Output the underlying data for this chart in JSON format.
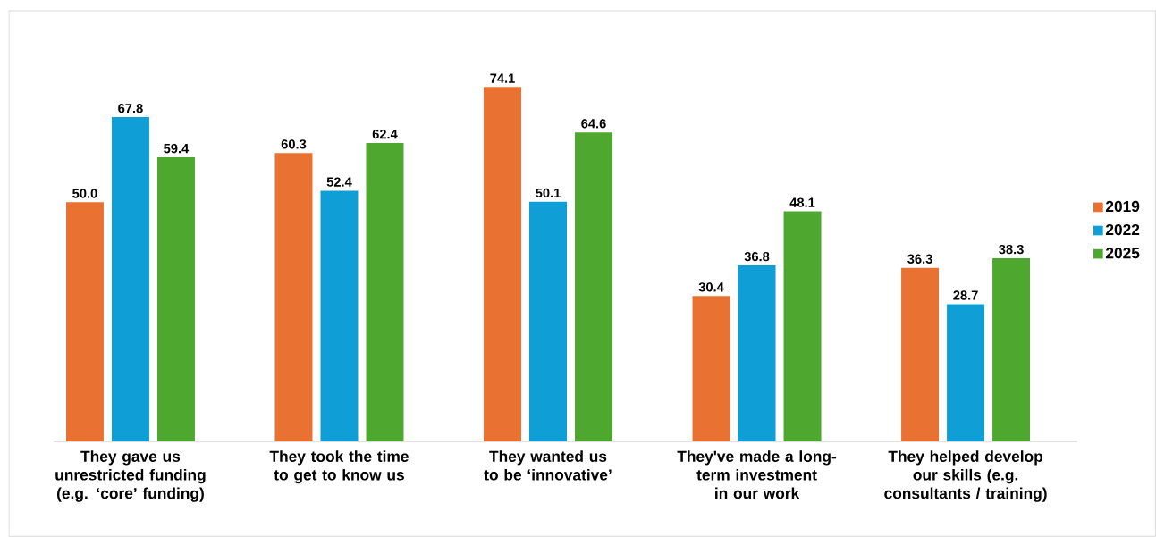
{
  "chart_data": {
    "type": "bar",
    "categories": [
      "They gave us unrestricted funding (e.g. ‘core’ funding)",
      "They took the time to get to know us",
      "They wanted us to be ‘innovative’",
      "They've made a long-term investment in our work",
      "They helped develop our skills (e.g. consultants / training)"
    ],
    "series": [
      {
        "name": "2019",
        "color": "#e97132",
        "values": [
          50.0,
          60.3,
          74.1,
          30.4,
          36.3
        ],
        "value_labels": [
          "50.0",
          "60.3",
          "74.1",
          "30.4",
          "36.3"
        ]
      },
      {
        "name": "2022",
        "color": "#0f9ed5",
        "values": [
          67.8,
          52.4,
          50.1,
          36.8,
          28.7
        ],
        "value_labels": [
          "67.8",
          "52.4",
          "50.1",
          "36.8",
          "28.7"
        ]
      },
      {
        "name": "2025",
        "color": "#4ea72e",
        "values": [
          59.4,
          62.4,
          64.6,
          48.1,
          38.3
        ],
        "value_labels": [
          "59.4",
          "62.4",
          "64.6",
          "48.1",
          "38.3"
        ]
      }
    ],
    "legend": "right",
    "tick_labels": "x"
  }
}
